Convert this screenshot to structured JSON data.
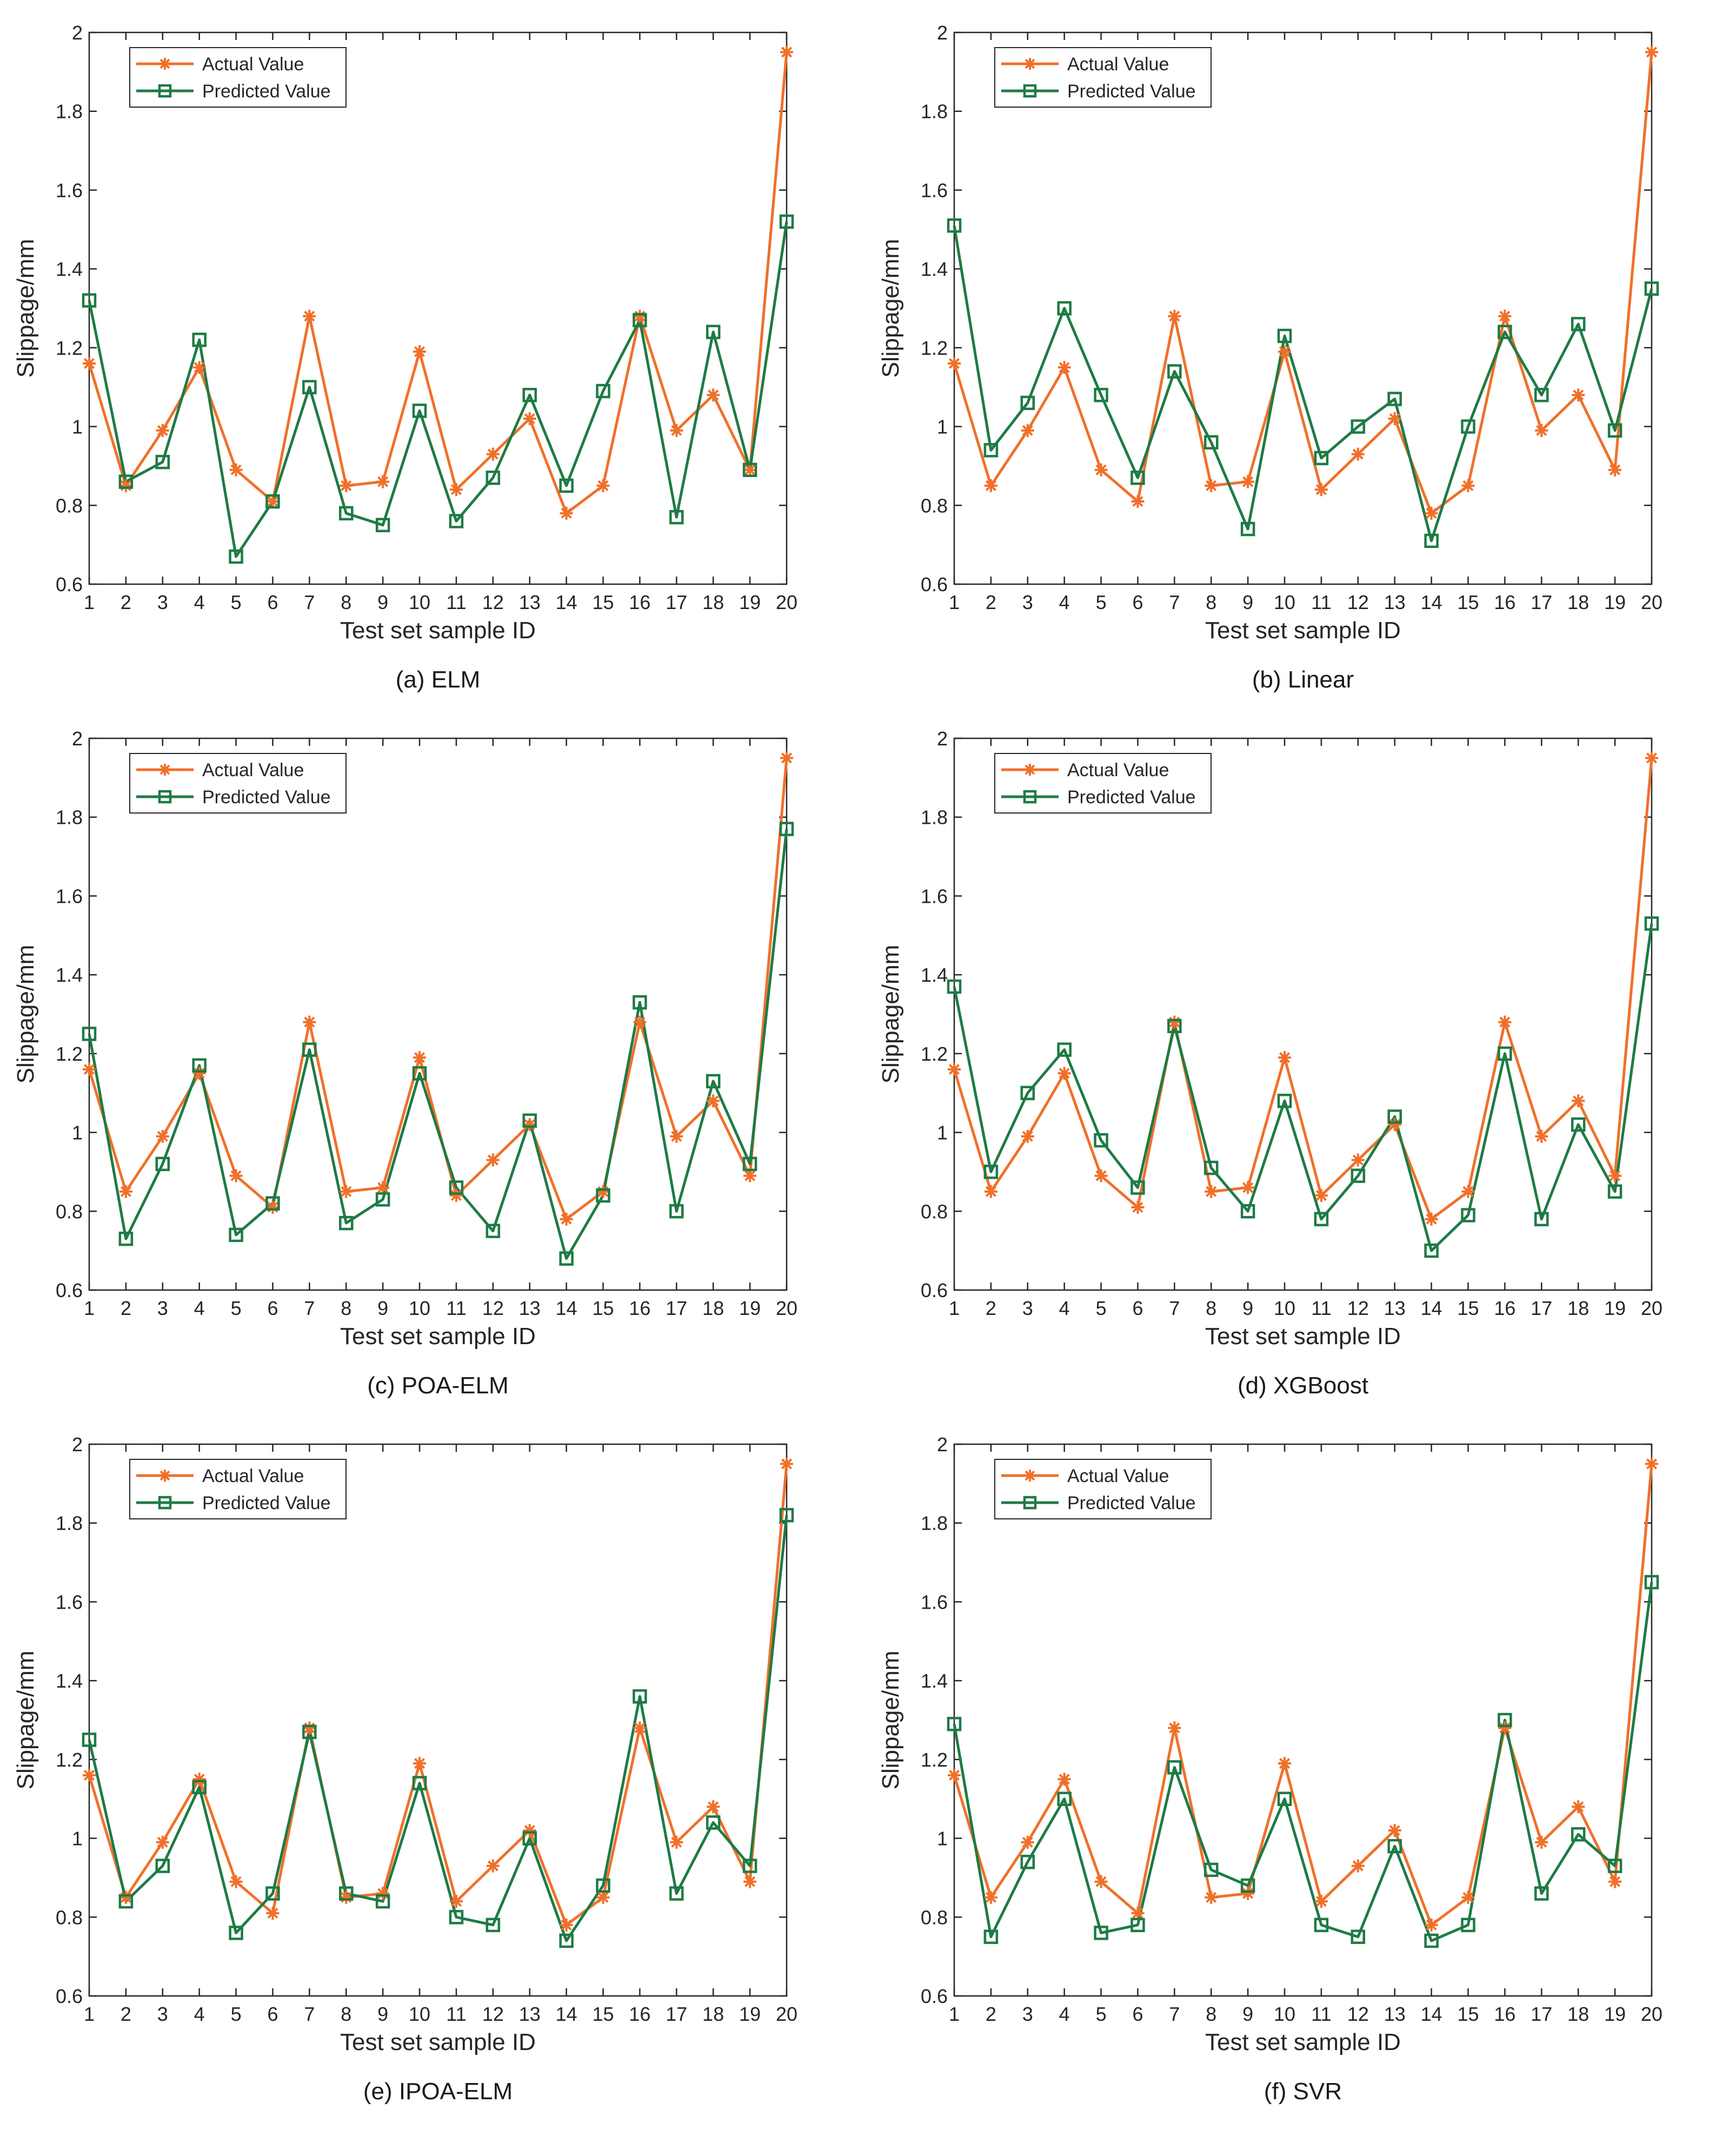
{
  "colors": {
    "actual": "#F0702A",
    "predicted": "#1E7B45",
    "axis": "#262626",
    "text": "#262626"
  },
  "chart_data": [
    {
      "type": "line",
      "caption": "(a) ELM",
      "xlabel": "Test set sample ID",
      "ylabel": "Slippage/mm",
      "x": [
        1,
        2,
        3,
        4,
        5,
        6,
        7,
        8,
        9,
        10,
        11,
        12,
        13,
        14,
        15,
        16,
        17,
        18,
        19,
        20
      ],
      "ylim": [
        0.6,
        2.0
      ],
      "yticks": [
        "0.6",
        "0.8",
        "1",
        "1.2",
        "1.4",
        "1.6",
        "1.8",
        "2"
      ],
      "legend_position": "top-left",
      "series": [
        {
          "name": "Actual Value",
          "marker": "star",
          "values": [
            1.16,
            0.85,
            0.99,
            1.15,
            0.89,
            0.81,
            1.28,
            0.85,
            0.86,
            1.19,
            0.84,
            0.93,
            1.02,
            0.78,
            0.85,
            1.28,
            0.99,
            1.08,
            0.89,
            1.95
          ]
        },
        {
          "name": "Predicted Value",
          "marker": "square",
          "values": [
            1.32,
            0.86,
            0.91,
            1.22,
            0.67,
            0.81,
            1.1,
            0.78,
            0.75,
            1.04,
            0.76,
            0.87,
            1.08,
            0.85,
            1.09,
            1.27,
            0.77,
            1.24,
            0.89,
            1.52
          ]
        }
      ]
    },
    {
      "type": "line",
      "caption": "(b) Linear",
      "xlabel": "Test set sample ID",
      "ylabel": "Slippage/mm",
      "x": [
        1,
        2,
        3,
        4,
        5,
        6,
        7,
        8,
        9,
        10,
        11,
        12,
        13,
        14,
        15,
        16,
        17,
        18,
        19,
        20
      ],
      "ylim": [
        0.6,
        2.0
      ],
      "yticks": [
        "0.6",
        "0.8",
        "1",
        "1.2",
        "1.4",
        "1.6",
        "1.8",
        "2"
      ],
      "legend_position": "top-left",
      "series": [
        {
          "name": "Actual Value",
          "marker": "star",
          "values": [
            1.16,
            0.85,
            0.99,
            1.15,
            0.89,
            0.81,
            1.28,
            0.85,
            0.86,
            1.19,
            0.84,
            0.93,
            1.02,
            0.78,
            0.85,
            1.28,
            0.99,
            1.08,
            0.89,
            1.95
          ]
        },
        {
          "name": "Predicted Value",
          "marker": "square",
          "values": [
            1.51,
            0.94,
            1.06,
            1.3,
            1.08,
            0.87,
            1.14,
            0.96,
            0.74,
            1.23,
            0.92,
            1.0,
            1.07,
            0.71,
            1.0,
            1.24,
            1.08,
            1.26,
            0.99,
            1.35
          ]
        }
      ]
    },
    {
      "type": "line",
      "caption": "(c) POA-ELM",
      "xlabel": "Test set sample ID",
      "ylabel": "Slippage/mm",
      "x": [
        1,
        2,
        3,
        4,
        5,
        6,
        7,
        8,
        9,
        10,
        11,
        12,
        13,
        14,
        15,
        16,
        17,
        18,
        19,
        20
      ],
      "ylim": [
        0.6,
        2.0
      ],
      "yticks": [
        "0.6",
        "0.8",
        "1",
        "1.2",
        "1.4",
        "1.6",
        "1.8",
        "2"
      ],
      "legend_position": "top-left",
      "series": [
        {
          "name": "Actual Value",
          "marker": "star",
          "values": [
            1.16,
            0.85,
            0.99,
            1.15,
            0.89,
            0.81,
            1.28,
            0.85,
            0.86,
            1.19,
            0.84,
            0.93,
            1.02,
            0.78,
            0.85,
            1.28,
            0.99,
            1.08,
            0.89,
            1.95
          ]
        },
        {
          "name": "Predicted Value",
          "marker": "square",
          "values": [
            1.25,
            0.73,
            0.92,
            1.17,
            0.74,
            0.82,
            1.21,
            0.77,
            0.83,
            1.15,
            0.86,
            0.75,
            1.03,
            0.68,
            0.84,
            1.33,
            0.8,
            1.13,
            0.92,
            1.77
          ]
        }
      ]
    },
    {
      "type": "line",
      "caption": "(d) XGBoost",
      "xlabel": "Test set sample ID",
      "ylabel": "Slippage/mm",
      "x": [
        1,
        2,
        3,
        4,
        5,
        6,
        7,
        8,
        9,
        10,
        11,
        12,
        13,
        14,
        15,
        16,
        17,
        18,
        19,
        20
      ],
      "ylim": [
        0.6,
        2.0
      ],
      "yticks": [
        "0.6",
        "0.8",
        "1",
        "1.2",
        "1.4",
        "1.6",
        "1.8",
        "2"
      ],
      "legend_position": "top-left",
      "series": [
        {
          "name": "Actual Value",
          "marker": "star",
          "values": [
            1.16,
            0.85,
            0.99,
            1.15,
            0.89,
            0.81,
            1.28,
            0.85,
            0.86,
            1.19,
            0.84,
            0.93,
            1.02,
            0.78,
            0.85,
            1.28,
            0.99,
            1.08,
            0.89,
            1.95
          ]
        },
        {
          "name": "Predicted Value",
          "marker": "square",
          "values": [
            1.37,
            0.9,
            1.1,
            1.21,
            0.98,
            0.86,
            1.27,
            0.91,
            0.8,
            1.08,
            0.78,
            0.89,
            1.04,
            0.7,
            0.79,
            1.2,
            0.78,
            1.02,
            0.85,
            1.53
          ]
        }
      ]
    },
    {
      "type": "line",
      "caption": "(e) IPOA-ELM",
      "xlabel": "Test set sample ID",
      "ylabel": "Slippage/mm",
      "x": [
        1,
        2,
        3,
        4,
        5,
        6,
        7,
        8,
        9,
        10,
        11,
        12,
        13,
        14,
        15,
        16,
        17,
        18,
        19,
        20
      ],
      "ylim": [
        0.6,
        2.0
      ],
      "yticks": [
        "0.6",
        "0.8",
        "1",
        "1.2",
        "1.4",
        "1.6",
        "1.8",
        "2"
      ],
      "legend_position": "top-left",
      "series": [
        {
          "name": "Actual Value",
          "marker": "star",
          "values": [
            1.16,
            0.85,
            0.99,
            1.15,
            0.89,
            0.81,
            1.28,
            0.85,
            0.86,
            1.19,
            0.84,
            0.93,
            1.02,
            0.78,
            0.85,
            1.28,
            0.99,
            1.08,
            0.89,
            1.95
          ]
        },
        {
          "name": "Predicted Value",
          "marker": "square",
          "values": [
            1.25,
            0.84,
            0.93,
            1.13,
            0.76,
            0.86,
            1.27,
            0.86,
            0.84,
            1.14,
            0.8,
            0.78,
            1.0,
            0.74,
            0.88,
            1.36,
            0.86,
            1.04,
            0.93,
            1.82
          ]
        }
      ]
    },
    {
      "type": "line",
      "caption": "(f) SVR",
      "xlabel": "Test set sample ID",
      "ylabel": "Slippage/mm",
      "x": [
        1,
        2,
        3,
        4,
        5,
        6,
        7,
        8,
        9,
        10,
        11,
        12,
        13,
        14,
        15,
        16,
        17,
        18,
        19,
        20
      ],
      "ylim": [
        0.6,
        2.0
      ],
      "yticks": [
        "0.6",
        "0.8",
        "1",
        "1.2",
        "1.4",
        "1.6",
        "1.8",
        "2"
      ],
      "legend_position": "top-left",
      "series": [
        {
          "name": "Actual Value",
          "marker": "star",
          "values": [
            1.16,
            0.85,
            0.99,
            1.15,
            0.89,
            0.81,
            1.28,
            0.85,
            0.86,
            1.19,
            0.84,
            0.93,
            1.02,
            0.78,
            0.85,
            1.28,
            0.99,
            1.08,
            0.89,
            1.95
          ]
        },
        {
          "name": "Predicted Value",
          "marker": "square",
          "values": [
            1.29,
            0.75,
            0.94,
            1.1,
            0.76,
            0.78,
            1.18,
            0.92,
            0.88,
            1.1,
            0.78,
            0.75,
            0.98,
            0.74,
            0.78,
            1.3,
            0.86,
            1.01,
            0.93,
            1.65
          ]
        }
      ]
    }
  ]
}
